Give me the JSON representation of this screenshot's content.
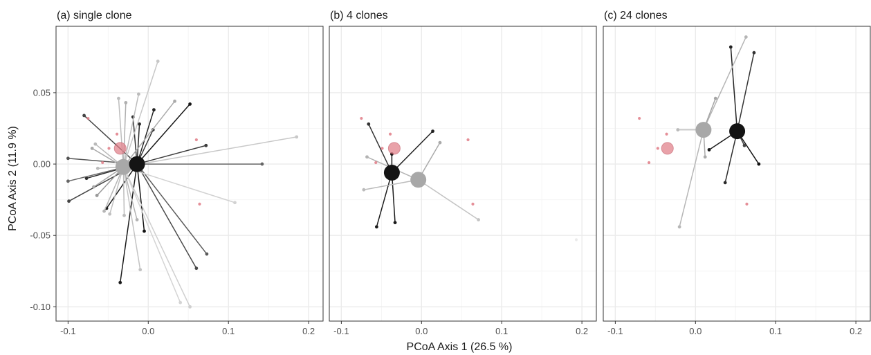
{
  "chart_data": {
    "type": "scatter",
    "xlabel": "PCoA Axis 1 (26.5 %)",
    "ylabel": "PCoA Axis 2 (11.9 %)",
    "xlim": [
      -0.115,
      0.218
    ],
    "ylim": [
      -0.11,
      0.0965
    ],
    "x_ticks": [
      -0.1,
      0.0,
      0.1,
      0.2
    ],
    "x_tick_labels": [
      "-0.1",
      "0.0",
      "0.1",
      "0.2"
    ],
    "y_ticks": [
      -0.1,
      -0.05,
      0.0,
      0.05
    ],
    "y_tick_labels": [
      "-0.10",
      "-0.05",
      "0.00",
      "0.05"
    ],
    "grid": true,
    "colors": {
      "black_group": "#141414",
      "grey_group": "#a8a8a8",
      "red_group": "#e07b86",
      "panel_border": "#333333",
      "grid_major": "#ebebeb",
      "grid_minor": "#f5f5f5"
    },
    "panels": [
      {
        "title": "(a) single clone",
        "centroids": [
          {
            "group": "red",
            "x": -0.035,
            "y": 0.011
          },
          {
            "group": "grey",
            "x": -0.031,
            "y": -0.002
          },
          {
            "group": "black",
            "x": -0.014,
            "y": 0.0
          }
        ],
        "spokes": [
          {
            "to": "black",
            "x": 0.052,
            "y": 0.042,
            "shade": "#151515"
          },
          {
            "to": "black",
            "x": 0.007,
            "y": 0.038,
            "shade": "#222222"
          },
          {
            "to": "black",
            "x": -0.019,
            "y": 0.033,
            "shade": "#333333"
          },
          {
            "to": "black",
            "x": -0.011,
            "y": 0.028,
            "shade": "#2a2a2a"
          },
          {
            "to": "black",
            "x": 0.006,
            "y": 0.024,
            "shade": "#3a3a3a"
          },
          {
            "to": "black",
            "x": -0.08,
            "y": 0.034,
            "shade": "#444444"
          },
          {
            "to": "black",
            "x": 0.072,
            "y": 0.013,
            "shade": "#3c3c3c"
          },
          {
            "to": "black",
            "x": 0.142,
            "y": 0.0,
            "shade": "#666666"
          },
          {
            "to": "black",
            "x": -0.1,
            "y": 0.004,
            "shade": "#555555"
          },
          {
            "to": "black",
            "x": -0.077,
            "y": -0.01,
            "shade": "#2e2e2e"
          },
          {
            "to": "black",
            "x": -0.099,
            "y": -0.026,
            "shade": "#444444"
          },
          {
            "to": "black",
            "x": -0.052,
            "y": -0.031,
            "shade": "#1c1c1c"
          },
          {
            "to": "black",
            "x": -0.035,
            "y": -0.083,
            "shade": "#1a1a1a"
          },
          {
            "to": "black",
            "x": -0.005,
            "y": -0.047,
            "shade": "#111111"
          },
          {
            "to": "black",
            "x": 0.073,
            "y": -0.063,
            "shade": "#5a5a5a"
          },
          {
            "to": "black",
            "x": 0.06,
            "y": -0.073,
            "shade": "#4a4a4a"
          },
          {
            "to": "black",
            "x": -0.1,
            "y": -0.012,
            "shade": "#666666"
          },
          {
            "to": "grey",
            "x": 0.012,
            "y": 0.072,
            "shade": "#c7c7c7"
          },
          {
            "to": "grey",
            "x": -0.012,
            "y": 0.049,
            "shade": "#bbbbbb"
          },
          {
            "to": "grey",
            "x": -0.037,
            "y": 0.046,
            "shade": "#bdbdbd"
          },
          {
            "to": "grey",
            "x": -0.028,
            "y": 0.043,
            "shade": "#b0b0b0"
          },
          {
            "to": "grey",
            "x": 0.033,
            "y": 0.044,
            "shade": "#aaaaaa"
          },
          {
            "to": "grey",
            "x": 0.185,
            "y": 0.019,
            "shade": "#c8c8c8"
          },
          {
            "to": "grey",
            "x": -0.066,
            "y": 0.014,
            "shade": "#b9b9b9"
          },
          {
            "to": "grey",
            "x": -0.07,
            "y": 0.011,
            "shade": "#a9a9a9"
          },
          {
            "to": "grey",
            "x": -0.063,
            "y": -0.003,
            "shade": "#bcbcbc"
          },
          {
            "to": "grey",
            "x": -0.068,
            "y": -0.016,
            "shade": "#a8a8a8"
          },
          {
            "to": "grey",
            "x": -0.064,
            "y": -0.022,
            "shade": "#999999"
          },
          {
            "to": "grey",
            "x": -0.055,
            "y": -0.033,
            "shade": "#b6b6b6"
          },
          {
            "to": "grey",
            "x": -0.048,
            "y": -0.035,
            "shade": "#c0c0c0"
          },
          {
            "to": "grey",
            "x": -0.03,
            "y": -0.036,
            "shade": "#bcbcbc"
          },
          {
            "to": "grey",
            "x": -0.014,
            "y": -0.039,
            "shade": "#b3b3b3"
          },
          {
            "to": "grey",
            "x": -0.01,
            "y": -0.074,
            "shade": "#c3c3c3"
          },
          {
            "to": "grey",
            "x": 0.04,
            "y": -0.097,
            "shade": "#d4d4d4"
          },
          {
            "to": "grey",
            "x": 0.052,
            "y": -0.1,
            "shade": "#cfcfcf"
          },
          {
            "to": "grey",
            "x": 0.108,
            "y": -0.027,
            "shade": "#d2d2d2"
          }
        ],
        "free_points": [
          {
            "group": "red",
            "x": -0.075,
            "y": 0.032
          },
          {
            "group": "red",
            "x": -0.039,
            "y": 0.021
          },
          {
            "group": "red",
            "x": -0.049,
            "y": 0.011
          },
          {
            "group": "red",
            "x": -0.057,
            "y": 0.001
          },
          {
            "group": "red",
            "x": 0.06,
            "y": 0.017
          },
          {
            "group": "red",
            "x": 0.064,
            "y": -0.028
          }
        ]
      },
      {
        "title": "(b) 4 clones",
        "centroids": [
          {
            "group": "red",
            "x": -0.034,
            "y": 0.011
          },
          {
            "group": "grey",
            "x": -0.004,
            "y": -0.011
          },
          {
            "group": "black",
            "x": -0.037,
            "y": -0.006
          }
        ],
        "spokes": [
          {
            "to": "black",
            "x": -0.066,
            "y": 0.028,
            "shade": "#333333"
          },
          {
            "to": "black",
            "x": 0.014,
            "y": 0.023,
            "shade": "#222222"
          },
          {
            "to": "black",
            "x": -0.037,
            "y": 0.007,
            "shade": "#111111"
          },
          {
            "to": "black",
            "x": -0.056,
            "y": -0.044,
            "shade": "#1a1a1a"
          },
          {
            "to": "black",
            "x": -0.033,
            "y": -0.041,
            "shade": "#1a1a1a"
          },
          {
            "to": "grey",
            "x": -0.068,
            "y": 0.005,
            "shade": "#b3b3b3"
          },
          {
            "to": "grey",
            "x": -0.072,
            "y": -0.018,
            "shade": "#bbbbbb"
          },
          {
            "to": "grey",
            "x": 0.023,
            "y": 0.015,
            "shade": "#aaaaaa"
          },
          {
            "to": "grey",
            "x": 0.071,
            "y": -0.039,
            "shade": "#c4c4c4"
          }
        ],
        "free_points": [
          {
            "group": "red",
            "x": -0.075,
            "y": 0.032
          },
          {
            "group": "red",
            "x": -0.039,
            "y": 0.021
          },
          {
            "group": "red",
            "x": -0.049,
            "y": 0.011
          },
          {
            "group": "red",
            "x": -0.057,
            "y": 0.001
          },
          {
            "group": "red",
            "x": 0.058,
            "y": 0.017
          },
          {
            "group": "red",
            "x": 0.064,
            "y": -0.028
          },
          {
            "group": "grey-faint",
            "x": 0.193,
            "y": -0.053
          }
        ]
      },
      {
        "title": "(c) 24 clones",
        "centroids": [
          {
            "group": "red",
            "x": -0.035,
            "y": 0.011
          },
          {
            "group": "grey",
            "x": 0.01,
            "y": 0.024
          },
          {
            "group": "black",
            "x": 0.052,
            "y": 0.023
          }
        ],
        "spokes": [
          {
            "to": "black",
            "x": 0.044,
            "y": 0.082,
            "shade": "#222222"
          },
          {
            "to": "black",
            "x": 0.073,
            "y": 0.078,
            "shade": "#333333"
          },
          {
            "to": "black",
            "x": 0.017,
            "y": 0.01,
            "shade": "#1a1a1a"
          },
          {
            "to": "black",
            "x": 0.037,
            "y": -0.013,
            "shade": "#2a2a2a"
          },
          {
            "to": "black",
            "x": 0.079,
            "y": 0.0,
            "shade": "#111111"
          },
          {
            "to": "black",
            "x": 0.061,
            "y": 0.013,
            "shade": "#444444"
          },
          {
            "to": "grey",
            "x": 0.063,
            "y": 0.089,
            "shade": "#b5b5b5"
          },
          {
            "to": "grey",
            "x": 0.025,
            "y": 0.046,
            "shade": "#a5a5a5"
          },
          {
            "to": "grey",
            "x": -0.022,
            "y": 0.024,
            "shade": "#bbbbbb"
          },
          {
            "to": "grey",
            "x": 0.012,
            "y": 0.005,
            "shade": "#aaaaaa"
          },
          {
            "to": "grey",
            "x": -0.02,
            "y": -0.044,
            "shade": "#b6b6b6"
          }
        ],
        "free_points": [
          {
            "group": "red",
            "x": -0.07,
            "y": 0.032
          },
          {
            "group": "red",
            "x": -0.036,
            "y": 0.021
          },
          {
            "group": "red",
            "x": -0.047,
            "y": 0.011
          },
          {
            "group": "red",
            "x": -0.058,
            "y": 0.001
          },
          {
            "group": "red",
            "x": 0.064,
            "y": -0.028
          }
        ]
      }
    ]
  }
}
